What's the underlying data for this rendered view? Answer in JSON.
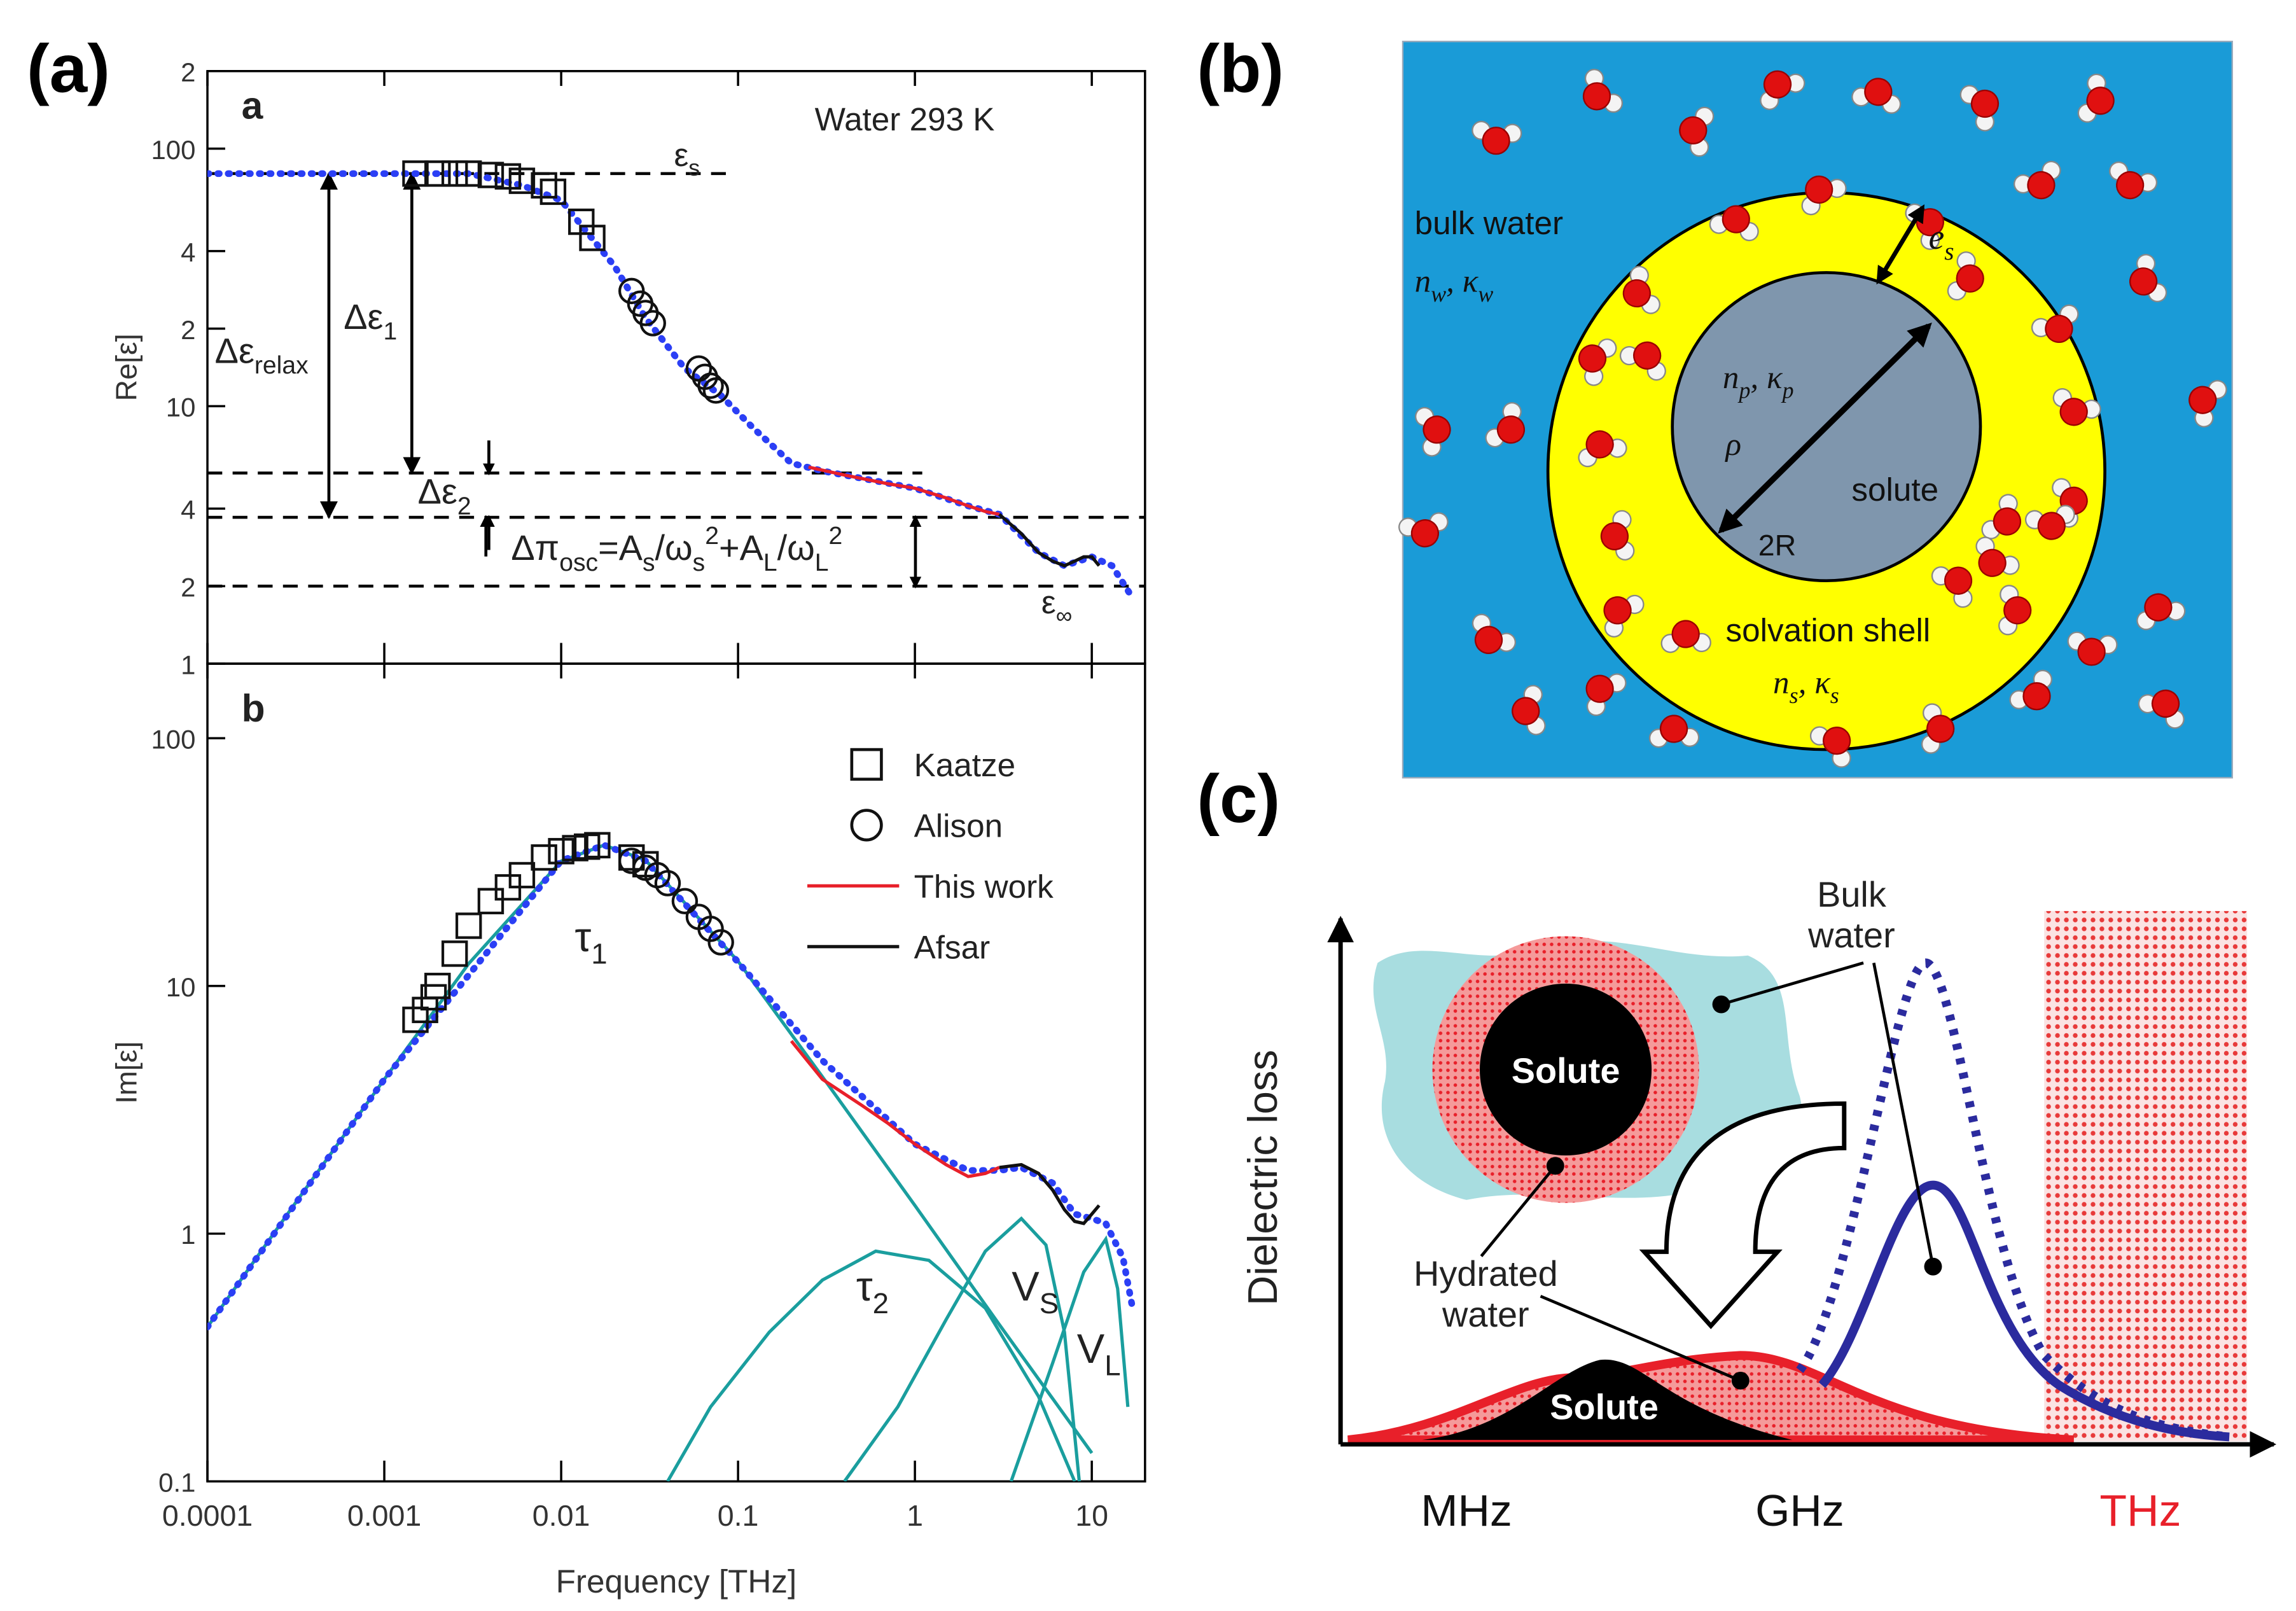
{
  "chart_data": [
    {
      "type": "line",
      "panel_label": "(a)",
      "ylabel": "Re[ε]",
      "xlog": true,
      "ylog": true,
      "xlim": [
        0.0001,
        20
      ],
      "ylim": [
        1,
        200
      ],
      "xticks": [
        0.0001,
        0.001,
        0.01,
        0.1,
        1,
        10
      ],
      "show_xtick_labels": false,
      "yticks": [
        1,
        2,
        4,
        10,
        {
          "value": 20,
          "label": "2"
        },
        {
          "value": 40,
          "label": "4"
        },
        100,
        {
          "value": 200,
          "label": "2"
        }
      ],
      "reference_lines": [
        {
          "y": 80,
          "x": [
            0.0001,
            0.09
          ]
        },
        {
          "y": 5.5,
          "x": [
            0.0001,
            1.1
          ]
        },
        {
          "y": 3.7,
          "x": [
            0.0001,
            20
          ]
        },
        {
          "y": 2,
          "x": [
            0.0001,
            20
          ]
        }
      ],
      "annotations": [
        {
          "parts": [
            {
              "t": "a"
            }
          ]
        },
        {
          "parts": [
            {
              "t": "Water 293 K"
            }
          ]
        },
        {
          "parts": [
            {
              "t": "ε"
            },
            {
              "t": "s",
              "s": "sub"
            }
          ]
        },
        {
          "parts": [
            {
              "t": "Δε"
            },
            {
              "t": "relax",
              "s": "sub"
            }
          ]
        },
        {
          "parts": [
            {
              "t": "Δε"
            },
            {
              "t": "1",
              "s": "sub"
            }
          ]
        },
        {
          "parts": [
            {
              "t": "Δε"
            },
            {
              "t": "2",
              "s": "sub"
            }
          ]
        },
        {
          "parts": [
            {
              "t": "Δπ"
            },
            {
              "t": "osc",
              "s": "sub"
            },
            {
              "t": "=A"
            },
            {
              "t": "s",
              "s": "sub"
            },
            {
              "t": "/ω"
            },
            {
              "t": "s",
              "s": "sub"
            },
            {
              "t": "2",
              "s": "sup"
            },
            {
              "t": "+A"
            },
            {
              "t": "L",
              "s": "sub"
            },
            {
              "t": "/ω"
            },
            {
              "t": "L",
              "s": "sub"
            },
            {
              "t": "2",
              "s": "sup"
            }
          ]
        },
        {
          "parts": [
            {
              "t": "ε"
            },
            {
              "t": "∞",
              "s": "sub"
            }
          ]
        }
      ],
      "series": [
        {
          "marker": "dotted",
          "color": "#2b3ff5",
          "x": [
            0.0001,
            0.001,
            0.003,
            0.006,
            0.01,
            0.02,
            0.03,
            0.05,
            0.08,
            0.12,
            0.2,
            0.3,
            1,
            2,
            3,
            5,
            7,
            10,
            13,
            17
          ],
          "values": [
            80,
            80,
            80,
            72,
            63,
            35,
            22,
            14,
            11,
            8.3,
            6.0,
            5.6,
            4.8,
            4.1,
            3.8,
            2.7,
            2.4,
            2.6,
            2.4,
            1.8
          ]
        },
        {
          "marker": "square",
          "color": "#111111",
          "x": [
            0.0015,
            0.002,
            0.0025,
            0.003,
            0.004,
            0.005,
            0.006,
            0.008,
            0.009,
            0.013,
            0.015
          ],
          "values": [
            80,
            80,
            80,
            80,
            79,
            78,
            75,
            72,
            68,
            52,
            45
          ]
        },
        {
          "marker": "circle",
          "color": "#111111",
          "x": [
            0.025,
            0.028,
            0.03,
            0.033,
            0.06,
            0.065,
            0.07,
            0.075
          ],
          "values": [
            28,
            25,
            23,
            21,
            14,
            13,
            12,
            11.5
          ]
        },
        {
          "marker": "line",
          "color": "#e8202a",
          "x": [
            0.25,
            0.4,
            0.7,
            1,
            1.5,
            2,
            2.5,
            3
          ],
          "values": [
            5.8,
            5.4,
            5.0,
            4.8,
            4.4,
            4.1,
            3.9,
            3.8
          ]
        },
        {
          "marker": "line",
          "color": "#111111",
          "x": [
            3,
            4,
            5,
            6,
            7,
            8,
            9,
            10,
            11
          ],
          "values": [
            3.8,
            3.2,
            2.7,
            2.5,
            2.4,
            2.5,
            2.6,
            2.6,
            2.4
          ]
        }
      ]
    },
    {
      "type": "line",
      "ylabel": "Im[ε]",
      "xlabel": "Frequency [THz]",
      "xlog": true,
      "ylog": true,
      "xlim": [
        0.0001,
        20
      ],
      "ylim": [
        0.1,
        200
      ],
      "xticks": [
        0.0001,
        0.001,
        0.01,
        0.1,
        1,
        10
      ],
      "show_xtick_labels": true,
      "yticks": [
        0.1,
        1,
        10,
        100
      ],
      "legend": "upper right",
      "annotations": [
        {
          "parts": [
            {
              "t": "b"
            }
          ]
        },
        {
          "parts": [
            {
              "t": "τ"
            },
            {
              "t": "1",
              "s": "sub"
            }
          ]
        },
        {
          "parts": [
            {
              "t": "τ"
            },
            {
              "t": "2",
              "s": "sub"
            }
          ]
        },
        {
          "parts": [
            {
              "t": "V"
            },
            {
              "t": "S",
              "s": "sub"
            }
          ]
        },
        {
          "parts": [
            {
              "t": "V"
            },
            {
              "t": "L",
              "s": "sub"
            }
          ]
        }
      ],
      "series": [
        {
          "marker": "line",
          "color": "#1a9e9e",
          "x": [
            0.0001,
            0.0003,
            0.001,
            0.003,
            0.01,
            0.0175,
            0.03,
            0.1,
            0.3,
            1,
            3,
            10
          ],
          "values": [
            0.42,
            1.27,
            4.2,
            12.3,
            31.9,
            37,
            32.2,
            12.6,
            4.3,
            1.3,
            0.43,
            0.13
          ]
        },
        {
          "marker": "line",
          "color": "#1a9e9e",
          "x": [
            0.04,
            0.07,
            0.15,
            0.3,
            0.6,
            1.2,
            2.5,
            5,
            8
          ],
          "values": [
            0.1,
            0.2,
            0.4,
            0.65,
            0.85,
            0.78,
            0.5,
            0.22,
            0.1
          ]
        },
        {
          "marker": "line",
          "color": "#1a9e9e",
          "x": [
            0.4,
            0.8,
            1.5,
            2.5,
            4,
            5.5,
            7,
            8.5
          ],
          "values": [
            0.1,
            0.2,
            0.45,
            0.85,
            1.15,
            0.9,
            0.4,
            0.1
          ]
        },
        {
          "marker": "line",
          "color": "#1a9e9e",
          "x": [
            3.5,
            6,
            9,
            12,
            14,
            16
          ],
          "values": [
            0.1,
            0.3,
            0.7,
            0.95,
            0.6,
            0.2
          ]
        },
        {
          "marker": "dotted",
          "color": "#2b3ff5",
          "x": [
            0.0001,
            0.001,
            0.01,
            0.0175,
            0.03,
            0.1,
            0.3,
            1,
            2,
            3,
            4,
            6,
            8,
            10,
            12,
            15,
            17
          ],
          "values": [
            0.42,
            4.2,
            32,
            37,
            32,
            12.5,
            5,
            2.3,
            1.8,
            1.8,
            1.85,
            1.6,
            1.2,
            1.15,
            1.1,
            0.8,
            0.5
          ]
        },
        {
          "name": "Kaatze",
          "marker": "square",
          "color": "#111111",
          "x": [
            0.0015,
            0.0017,
            0.0019,
            0.002,
            0.0025,
            0.003,
            0.004,
            0.005,
            0.006,
            0.008,
            0.01,
            0.012,
            0.014,
            0.016,
            0.025,
            0.03
          ],
          "values": [
            7.3,
            8,
            9,
            10,
            13.5,
            17.5,
            22,
            25,
            28,
            33,
            35,
            36,
            36.5,
            37,
            33,
            31
          ]
        },
        {
          "name": "Alison",
          "marker": "circle",
          "color": "#111111",
          "x": [
            0.025,
            0.03,
            0.035,
            0.04,
            0.05,
            0.06,
            0.07,
            0.08
          ],
          "values": [
            32,
            30,
            28,
            26,
            22,
            19,
            17,
            15
          ]
        },
        {
          "name": "This work",
          "marker": "line",
          "color": "#e8202a",
          "x": [
            0.2,
            0.3,
            0.5,
            0.7,
            1,
            1.5,
            2,
            2.5,
            3
          ],
          "values": [
            6,
            4.2,
            3.3,
            2.8,
            2.3,
            1.9,
            1.7,
            1.75,
            1.85
          ]
        },
        {
          "name": "Afsar",
          "marker": "line",
          "color": "#111111",
          "x": [
            3,
            4,
            5,
            6,
            7,
            8,
            9,
            10,
            11
          ],
          "values": [
            1.85,
            1.9,
            1.75,
            1.5,
            1.25,
            1.12,
            1.1,
            1.2,
            1.3
          ]
        }
      ]
    }
  ],
  "diagram_b": {
    "panel_label": "(b)",
    "texts": [
      {
        "parts": [
          {
            "t": "bulk water"
          }
        ]
      },
      {
        "parts": [
          {
            "t": "n"
          },
          {
            "t": "w",
            "s": "sub"
          },
          {
            "t": ", κ"
          },
          {
            "t": "w",
            "s": "sub"
          }
        ]
      },
      {
        "parts": [
          {
            "t": "e"
          },
          {
            "t": "s",
            "s": "sub"
          }
        ]
      },
      {
        "parts": [
          {
            "t": "n"
          },
          {
            "t": "p",
            "s": "sub"
          },
          {
            "t": ", κ"
          },
          {
            "t": "p",
            "s": "sub"
          }
        ]
      },
      {
        "parts": [
          {
            "t": "ρ"
          }
        ]
      },
      {
        "parts": [
          {
            "t": "solute"
          }
        ]
      },
      {
        "parts": [
          {
            "t": "2R"
          }
        ]
      },
      {
        "parts": [
          {
            "t": "solvation shell"
          }
        ]
      },
      {
        "parts": [
          {
            "t": "n"
          },
          {
            "t": "s",
            "s": "sub"
          },
          {
            "t": ", κ"
          },
          {
            "t": "s",
            "s": "sub"
          }
        ]
      }
    ]
  },
  "diagram_c": {
    "panel_label": "(c)",
    "texts": [
      {
        "lines": [
          "Bulk",
          "water"
        ]
      },
      {
        "parts": [
          {
            "t": "Solute"
          }
        ]
      },
      {
        "lines": [
          "Hydrated",
          "water"
        ]
      },
      {
        "parts": [
          {
            "t": "Solute"
          }
        ]
      },
      {
        "parts": [
          {
            "t": "Dielectric loss"
          }
        ]
      },
      {
        "parts": [
          {
            "t": "MHz"
          }
        ]
      },
      {
        "parts": [
          {
            "t": "GHz"
          }
        ]
      },
      {
        "parts": [
          {
            "t": "THz"
          }
        ]
      }
    ]
  }
}
